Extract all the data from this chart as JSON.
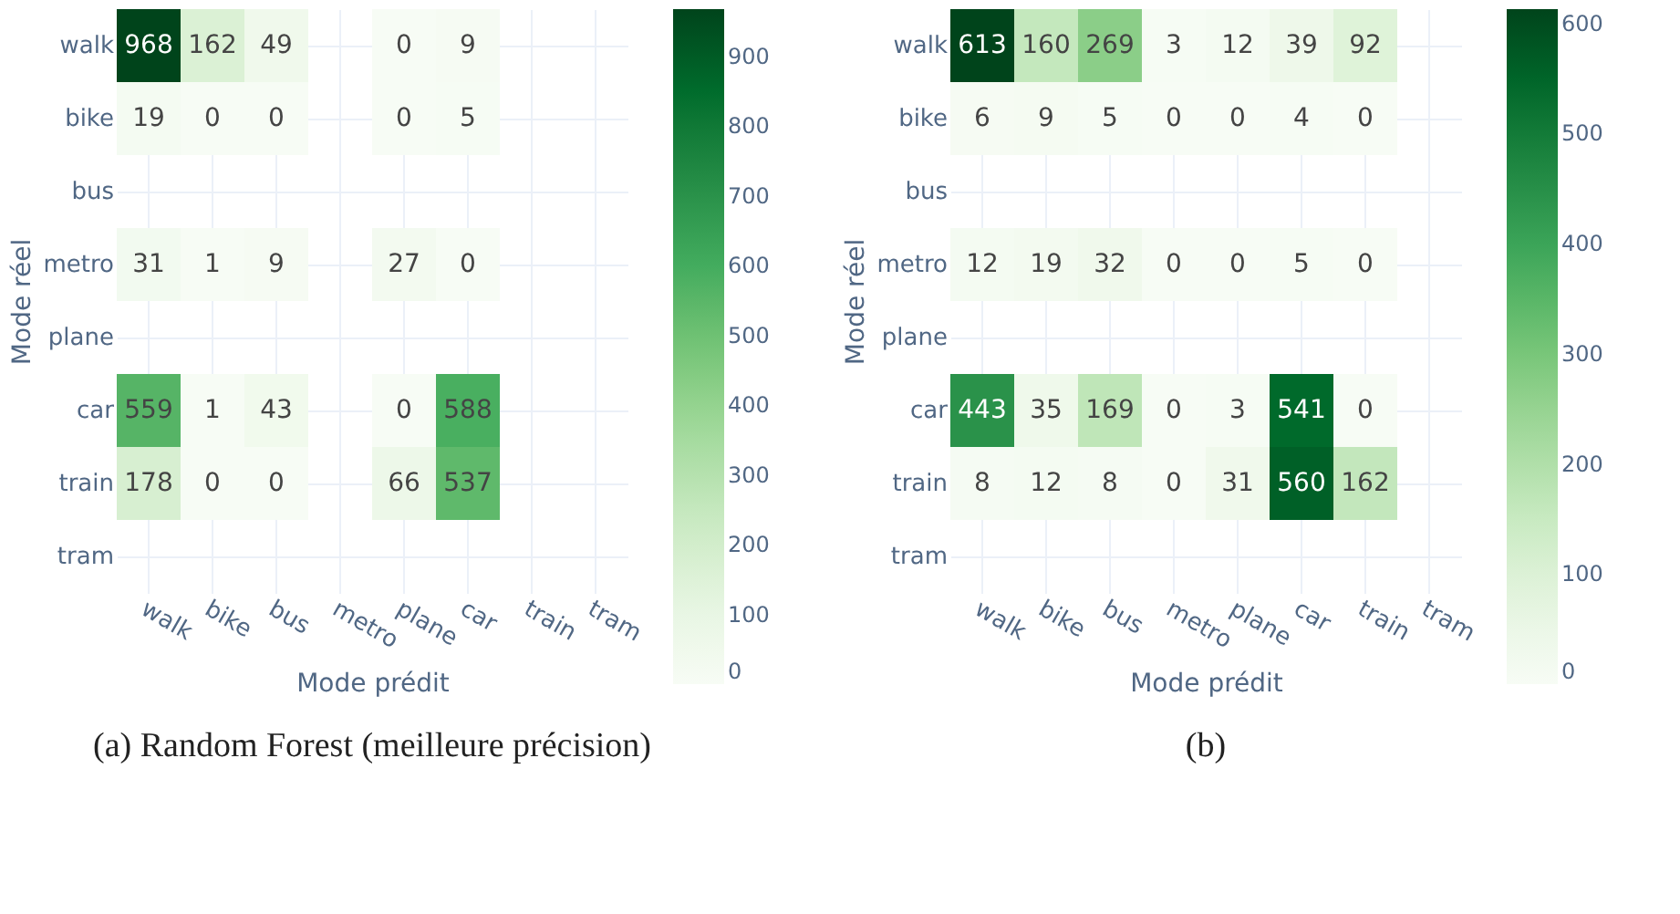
{
  "chart_data": [
    {
      "type": "heatmap",
      "xlabel": "Mode prédit",
      "ylabel": "Mode réel",
      "annotations": [
        "(a) Random Forest (meilleure précision)"
      ],
      "grid": true,
      "categories": [
        "walk",
        "bike",
        "bus",
        "metro",
        "plane",
        "car",
        "train",
        "tram"
      ],
      "y_categories": [
        "walk",
        "bike",
        "bus",
        "metro",
        "plane",
        "car",
        "train",
        "tram"
      ],
      "cells": [
        [
          968,
          162,
          49,
          null,
          0,
          9,
          null,
          null
        ],
        [
          19,
          0,
          0,
          null,
          0,
          5,
          null,
          null
        ],
        [
          null,
          null,
          null,
          null,
          null,
          null,
          null,
          null
        ],
        [
          31,
          1,
          9,
          null,
          27,
          0,
          null,
          null
        ],
        [
          null,
          null,
          null,
          null,
          null,
          null,
          null,
          null
        ],
        [
          559,
          1,
          43,
          null,
          0,
          588,
          null,
          null
        ],
        [
          178,
          0,
          0,
          null,
          66,
          537,
          null,
          null
        ],
        [
          null,
          null,
          null,
          null,
          null,
          null,
          null,
          null
        ]
      ],
      "data_labels": true,
      "clim": [
        0,
        968
      ],
      "cticks": [
        0,
        100,
        200,
        300,
        400,
        500,
        600,
        700,
        800,
        900
      ]
    },
    {
      "type": "heatmap",
      "xlabel": "Mode prédit",
      "ylabel": "Mode réel",
      "annotations": [
        "(b)"
      ],
      "grid": true,
      "categories": [
        "walk",
        "bike",
        "bus",
        "metro",
        "plane",
        "car",
        "train",
        "tram"
      ],
      "y_categories": [
        "walk",
        "bike",
        "bus",
        "metro",
        "plane",
        "car",
        "train",
        "tram"
      ],
      "cells": [
        [
          613,
          160,
          269,
          3,
          12,
          39,
          92,
          null
        ],
        [
          6,
          9,
          5,
          0,
          0,
          4,
          0,
          null
        ],
        [
          null,
          null,
          null,
          null,
          null,
          null,
          null,
          null
        ],
        [
          12,
          19,
          32,
          0,
          0,
          5,
          0,
          null
        ],
        [
          null,
          null,
          null,
          null,
          null,
          null,
          null,
          null
        ],
        [
          443,
          35,
          169,
          0,
          3,
          541,
          0,
          null
        ],
        [
          8,
          12,
          8,
          0,
          31,
          560,
          162,
          null
        ],
        [
          null,
          null,
          null,
          null,
          null,
          null,
          null,
          null
        ]
      ],
      "data_labels": true,
      "clim": [
        0,
        613
      ],
      "cticks": [
        0,
        100,
        200,
        300,
        400,
        500,
        600
      ]
    }
  ]
}
